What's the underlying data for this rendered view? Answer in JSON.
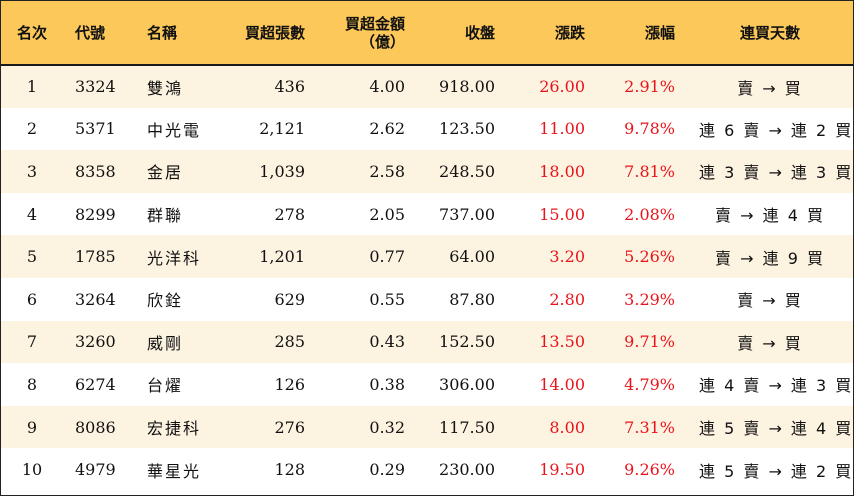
{
  "columns": [
    "名次",
    "代號",
    "名稱",
    "買超張數",
    "買超金額\n（億）",
    "收盤",
    "漲跌",
    "漲幅",
    "連買天數"
  ],
  "rows": [
    {
      "rank": "1",
      "code": "3324",
      "name": "雙鴻",
      "shares": "436",
      "amount": "4.00",
      "close": "918.00",
      "change": "26.00",
      "pct": "2.91%",
      "streak": "賣 → 買"
    },
    {
      "rank": "2",
      "code": "5371",
      "name": "中光電",
      "shares": "2,121",
      "amount": "2.62",
      "close": "123.50",
      "change": "11.00",
      "pct": "9.78%",
      "streak": "連 6 賣 → 連 2 買"
    },
    {
      "rank": "3",
      "code": "8358",
      "name": "金居",
      "shares": "1,039",
      "amount": "2.58",
      "close": "248.50",
      "change": "18.00",
      "pct": "7.81%",
      "streak": "連 3 賣 → 連 3 買"
    },
    {
      "rank": "4",
      "code": "8299",
      "name": "群聯",
      "shares": "278",
      "amount": "2.05",
      "close": "737.00",
      "change": "15.00",
      "pct": "2.08%",
      "streak": "賣 → 連 4 買"
    },
    {
      "rank": "5",
      "code": "1785",
      "name": "光洋科",
      "shares": "1,201",
      "amount": "0.77",
      "close": "64.00",
      "change": "3.20",
      "pct": "5.26%",
      "streak": "賣 → 連 9 買"
    },
    {
      "rank": "6",
      "code": "3264",
      "name": "欣銓",
      "shares": "629",
      "amount": "0.55",
      "close": "87.80",
      "change": "2.80",
      "pct": "3.29%",
      "streak": "賣 → 買"
    },
    {
      "rank": "7",
      "code": "3260",
      "name": "威剛",
      "shares": "285",
      "amount": "0.43",
      "close": "152.50",
      "change": "13.50",
      "pct": "9.71%",
      "streak": "賣 → 買"
    },
    {
      "rank": "8",
      "code": "6274",
      "name": "台燿",
      "shares": "126",
      "amount": "0.38",
      "close": "306.00",
      "change": "14.00",
      "pct": "4.79%",
      "streak": "連 4 賣 → 連 3 買"
    },
    {
      "rank": "9",
      "code": "8086",
      "name": "宏捷科",
      "shares": "276",
      "amount": "0.32",
      "close": "117.50",
      "change": "8.00",
      "pct": "7.31%",
      "streak": "連 5 賣 → 連 4 買"
    },
    {
      "rank": "10",
      "code": "4979",
      "name": "華星光",
      "shares": "128",
      "amount": "0.29",
      "close": "230.00",
      "change": "19.50",
      "pct": "9.26%",
      "streak": "連 5 賣 → 連 2 買"
    }
  ],
  "colors": {
    "header_bg": "#fcc859",
    "stripe_bg": "#fdf3e1",
    "up_red": "#e8141b"
  }
}
